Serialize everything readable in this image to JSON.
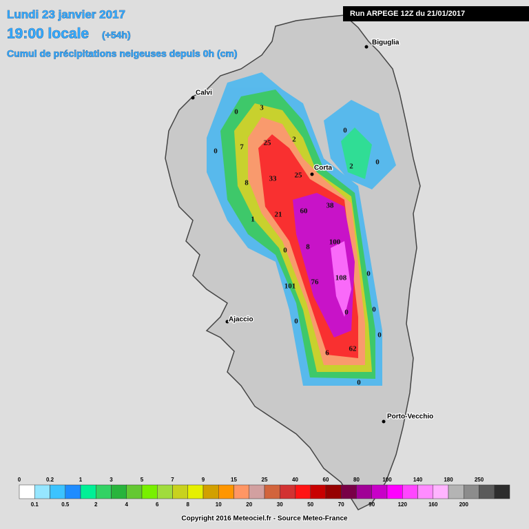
{
  "header": {
    "title": "Lundi 23 janvier 2017",
    "time": "19:00 locale",
    "time_offset": "(+54h)",
    "subtitle": "Cumul de précipitations neigeuses depuis 0h (cm)"
  },
  "run_label": "Run ARPEGE 12Z du 21/01/2017",
  "cities": [
    "Biguglia",
    "Calvi",
    "Corta",
    "Ajaccio",
    "Porto-Vecchio"
  ],
  "map_labels": [
    "0",
    "3",
    "2",
    "0",
    "7",
    "25",
    "0",
    "2",
    "0",
    "33",
    "25",
    "8",
    "38",
    "60",
    "1",
    "21",
    "100",
    "8",
    "0",
    "108",
    "76",
    "0",
    "101",
    "0",
    "0",
    "0",
    "0",
    "62",
    "6",
    "0"
  ],
  "legend": {
    "upper_labels": [
      "0",
      "0.2",
      "1",
      "3",
      "5",
      "7",
      "9",
      "15",
      "25",
      "40",
      "60",
      "80",
      "100",
      "140",
      "180",
      "250"
    ],
    "lower_labels": [
      "0.1",
      "0.5",
      "2",
      "4",
      "6",
      "8",
      "10",
      "20",
      "30",
      "50",
      "70",
      "90",
      "120",
      "160",
      "200"
    ],
    "colors": [
      "#ffffff",
      "#96e6ff",
      "#3cc3ff",
      "#1e8cff",
      "#00f096",
      "#32d264",
      "#28b43c",
      "#64c832",
      "#78f000",
      "#a0dc3c",
      "#c8d21e",
      "#e6f000",
      "#d2a000",
      "#ff9600",
      "#ff9664",
      "#d2a0a0",
      "#d2643c",
      "#d23232",
      "#ff1414",
      "#c80000",
      "#960000",
      "#780046",
      "#a00096",
      "#c800c8",
      "#ff00ff",
      "#ff46ff",
      "#ff8cff",
      "#ffb4ff",
      "#b4b4b4",
      "#8c8c8c",
      "#5a5a5a",
      "#2d2d2d"
    ]
  },
  "copyright": "Copyright 2016 Meteociel.fr - Source Meteo-France"
}
